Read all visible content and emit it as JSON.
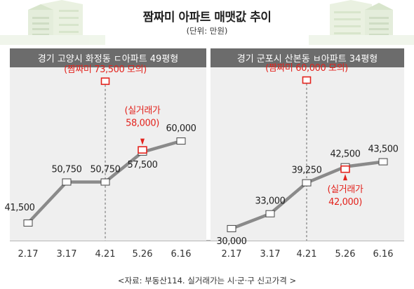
{
  "title": "짬짜미 아파트 매맷값 추이",
  "unit": "(단위: 만원)",
  "source": "<자료: 부동산114. 실거래가는 시·군·구 신고가격 >",
  "colors": {
    "line": "#8a8a8a",
    "accent": "#e3231d",
    "panel_bg": "#efefef",
    "header_bg": "#6c6c6c"
  },
  "icons": [
    "apartment-building-icon",
    "apartment-building-icon"
  ],
  "chart_data": [
    {
      "type": "line",
      "title": "경기 고양시 화정동 ㄷ아파트 49평형",
      "categories": [
        "2.17",
        "3.17",
        "4.21",
        "5.26",
        "6.16"
      ],
      "values": [
        41500,
        50750,
        50750,
        57500,
        60000
      ],
      "labels": [
        "41,500",
        "50,750",
        "50,750",
        "57,500",
        "60,000"
      ],
      "collusion_price": {
        "label": "(짬짜미 73,500 모의)",
        "value": 73500,
        "category": "4.21"
      },
      "actual_price": {
        "label_line1": "(실거래가",
        "label_line2": "58,000)",
        "value": 58000,
        "category": "5.26"
      },
      "ylim": [
        38000,
        76000
      ]
    },
    {
      "type": "line",
      "title": "경기 군포시 산본동 ㅂ아파트 34평형",
      "categories": [
        "2.17",
        "3.17",
        "4.21",
        "5.26",
        "6.16"
      ],
      "values": [
        30000,
        33000,
        39250,
        42500,
        43500
      ],
      "labels": [
        "30,000",
        "33,000",
        "39,250",
        "42,500",
        "43,500"
      ],
      "collusion_price": {
        "label": "(짬짜미 60,000 모의)",
        "value": 60000,
        "category": "4.21"
      },
      "actual_price": {
        "label_line1": "(실거래가",
        "label_line2": "42,000)",
        "value": 42000,
        "category": "5.26"
      },
      "ylim": [
        28000,
        62000
      ]
    }
  ]
}
